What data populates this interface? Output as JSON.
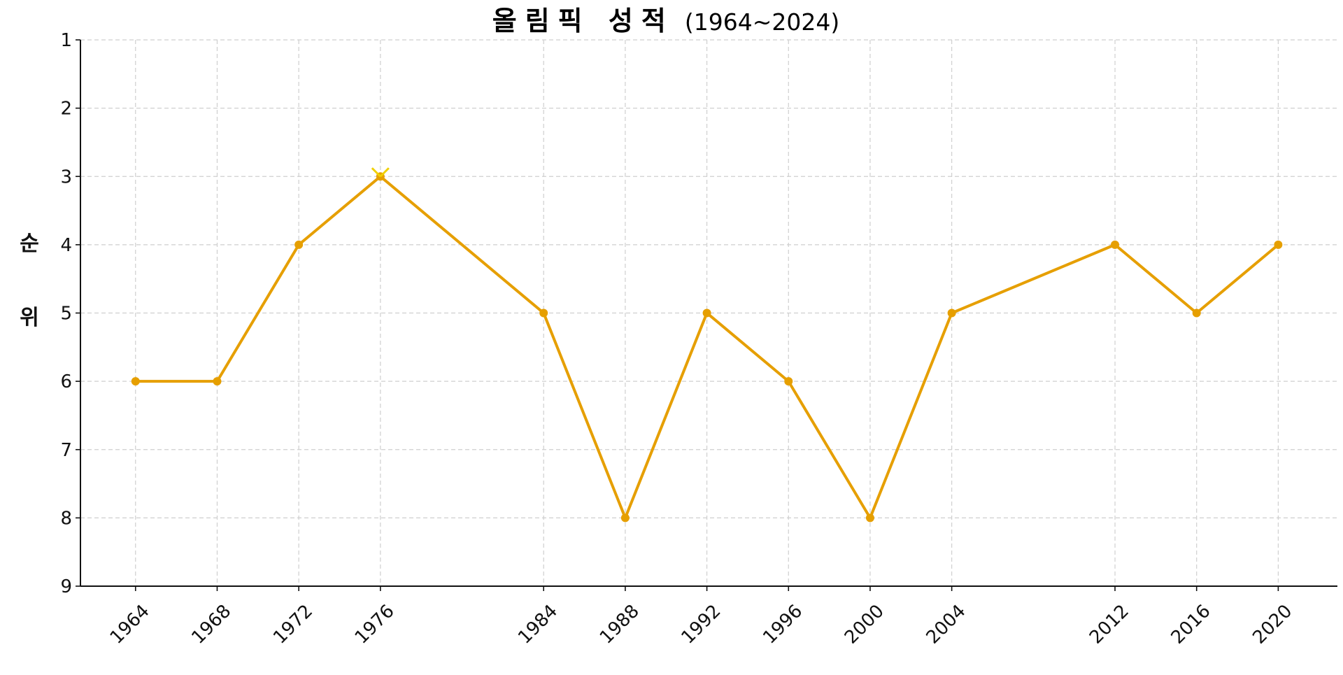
{
  "chart_data": {
    "type": "line",
    "title": "올림픽 성적",
    "subtitle": "(1964~2024)",
    "xlabel": "",
    "ylabel": "순위",
    "x": [
      1964,
      1968,
      1972,
      1976,
      1984,
      1988,
      1992,
      1996,
      2000,
      2004,
      2012,
      2016,
      2020
    ],
    "y": [
      6,
      6,
      4,
      3,
      5,
      8,
      5,
      6,
      8,
      5,
      4,
      5,
      4
    ],
    "xticks": [
      "1964",
      "1968",
      "1972",
      "1976",
      "1984",
      "1988",
      "1992",
      "1996",
      "2000",
      "2004",
      "2012",
      "2016",
      "2020"
    ],
    "yticks": [
      "1",
      "2",
      "3",
      "4",
      "5",
      "6",
      "7",
      "8",
      "9"
    ],
    "ylim": [
      1,
      9
    ],
    "y_inverted": true,
    "xlim": [
      1961.3,
      2022.9
    ],
    "grid": true,
    "line_color": "#E69F00",
    "highlight_marker_color": "#F0D000",
    "highlight_x": 1976
  }
}
